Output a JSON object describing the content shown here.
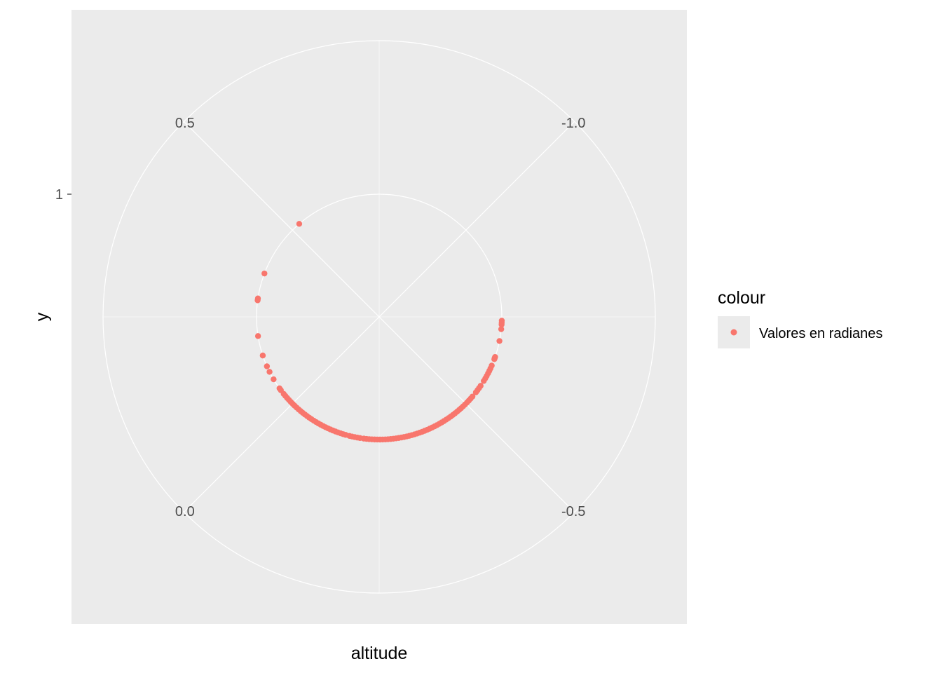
{
  "chart_data": {
    "type": "scatter",
    "coord": "polar",
    "theta_var": "altitude",
    "r_var": "y",
    "xlabel": "altitude",
    "ylabel": "y",
    "theta_tick_labels": [
      "-1.0",
      "-0.5",
      "0.0",
      "0.5"
    ],
    "theta_ticks": [
      -1.0,
      -0.5,
      0.0,
      0.5
    ],
    "r_tick_labels": [
      "1"
    ],
    "r_ticks": [
      1
    ],
    "grid": true,
    "panel_background": "#ebebeb",
    "grid_color": "#ffffff",
    "point_color": "#f8766d",
    "legend": {
      "title": "colour",
      "position": "right",
      "entries": [
        {
          "label": "Valores en radianes",
          "color": "#f8766d"
        }
      ]
    },
    "series": [
      {
        "name": "Valores en radianes",
        "r": 1,
        "altitude": [
          -0.74,
          -0.735,
          -0.73,
          -0.718,
          -0.687,
          -0.644,
          -0.641,
          -0.638,
          -0.62,
          -0.612,
          -0.605,
          -0.598,
          -0.59,
          -0.583,
          -0.575,
          -0.56,
          -0.553,
          -0.546,
          -0.539,
          -0.525,
          -0.518,
          -0.511,
          -0.504,
          -0.497,
          -0.49,
          -0.483,
          -0.476,
          -0.469,
          -0.462,
          -0.455,
          -0.448,
          -0.441,
          -0.434,
          -0.427,
          -0.42,
          -0.413,
          -0.406,
          -0.399,
          -0.392,
          -0.385,
          -0.378,
          -0.371,
          -0.364,
          -0.357,
          -0.35,
          -0.343,
          -0.336,
          -0.329,
          -0.322,
          -0.315,
          -0.308,
          -0.301,
          -0.294,
          -0.287,
          -0.28,
          -0.273,
          -0.266,
          -0.259,
          -0.252,
          -0.245,
          -0.238,
          -0.231,
          -0.224,
          -0.217,
          -0.21,
          -0.2,
          -0.193,
          -0.186,
          -0.179,
          -0.172,
          -0.162,
          -0.155,
          -0.148,
          -0.141,
          -0.134,
          -0.127,
          -0.12,
          -0.113,
          -0.106,
          -0.099,
          -0.092,
          -0.085,
          -0.078,
          -0.071,
          -0.064,
          -0.057,
          -0.05,
          -0.043,
          -0.036,
          -0.029,
          -0.022,
          -0.015,
          -0.008,
          -0.001,
          0.006,
          0.013,
          0.02,
          0.027,
          0.034,
          0.046,
          0.052,
          0.08,
          0.102,
          0.118,
          0.148,
          0.2,
          0.293,
          0.298,
          0.365,
          0.524
        ]
      }
    ]
  }
}
